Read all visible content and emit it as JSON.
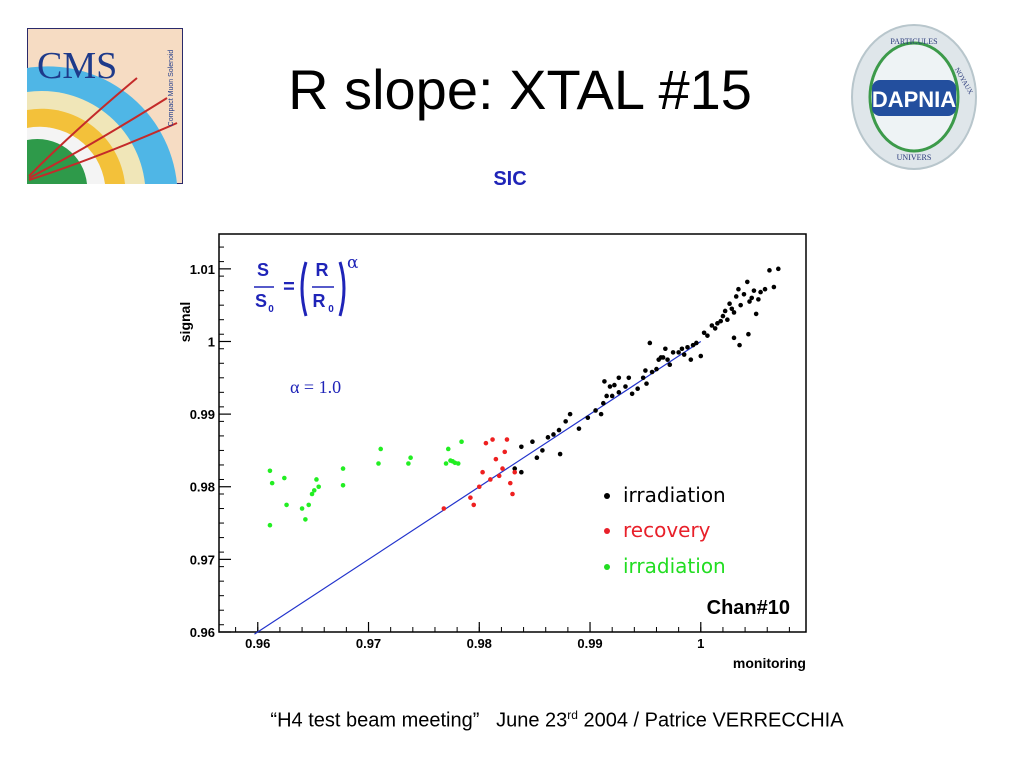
{
  "title": "R slope: XTAL #15",
  "subtitle": "SIC",
  "logos": {
    "left": {
      "icon": "cms-logo",
      "text": "CMS",
      "small_text": "Compact Muon Solenoid"
    },
    "right": {
      "icon": "dapnia-logo",
      "text": "DAPNIA",
      "ring_top": "PARTICULES",
      "ring_right": "NOYAUX",
      "ring_bottom": "UNIVERS"
    }
  },
  "footer": {
    "meeting": "“H4 test beam meeting”",
    "date_pre": "June 23",
    "date_sup": "rd",
    "date_post": " 2004 / Patrice VERRECCHIA"
  },
  "chart_data": {
    "type": "scatter",
    "xlabel": "monitoring",
    "ylabel": "signal",
    "xlim": [
      0.9565,
      1.0095
    ],
    "ylim": [
      0.96,
      1.0148
    ],
    "x_ticks": [
      0.96,
      0.97,
      0.98,
      0.99,
      1.0
    ],
    "x_tick_labels": [
      "0.96",
      "0.97",
      "0.98",
      "0.99",
      "1"
    ],
    "y_ticks": [
      0.96,
      0.97,
      0.98,
      0.99,
      1.0,
      1.01
    ],
    "y_tick_labels": [
      "0.96",
      "0.97",
      "0.98",
      "0.99",
      "1",
      "1.01"
    ],
    "formula": {
      "lhs_num": "S",
      "lhs_den": "S",
      "lhs_sub": "0",
      "eq": "=",
      "rhs_num": "R",
      "rhs_den": "R",
      "rhs_sub": "0",
      "exponent": "α"
    },
    "alpha_text": "α = 1.0",
    "annotation": "Chan#10",
    "fit_line": {
      "color": "#2233cc",
      "slope": 1.0,
      "x_range": [
        0.9597,
        1.0
      ]
    },
    "series": [
      {
        "name": "irradiation",
        "color": "#000000",
        "legend_color": "#000000",
        "points": [
          [
            0.9832,
            0.9825
          ],
          [
            0.9838,
            0.982
          ],
          [
            0.9838,
            0.9855
          ],
          [
            0.9848,
            0.9862
          ],
          [
            0.9852,
            0.984
          ],
          [
            0.9857,
            0.985
          ],
          [
            0.9862,
            0.9868
          ],
          [
            0.9867,
            0.9872
          ],
          [
            0.9872,
            0.9878
          ],
          [
            0.9873,
            0.9845
          ],
          [
            0.9878,
            0.989
          ],
          [
            0.9882,
            0.99
          ],
          [
            0.989,
            0.988
          ],
          [
            0.9898,
            0.9895
          ],
          [
            0.9905,
            0.9905
          ],
          [
            0.991,
            0.99
          ],
          [
            0.9912,
            0.9915
          ],
          [
            0.9913,
            0.9945
          ],
          [
            0.9915,
            0.9925
          ],
          [
            0.9918,
            0.9938
          ],
          [
            0.992,
            0.9925
          ],
          [
            0.9922,
            0.994
          ],
          [
            0.9926,
            0.995
          ],
          [
            0.9926,
            0.993
          ],
          [
            0.9932,
            0.9938
          ],
          [
            0.9935,
            0.995
          ],
          [
            0.9938,
            0.9928
          ],
          [
            0.9943,
            0.9935
          ],
          [
            0.9948,
            0.995
          ],
          [
            0.995,
            0.996
          ],
          [
            0.9951,
            0.9942
          ],
          [
            0.9956,
            0.9958
          ],
          [
            0.996,
            0.9962
          ],
          [
            0.9962,
            0.9975
          ],
          [
            0.9966,
            0.9978
          ],
          [
            0.997,
            0.9975
          ],
          [
            0.9972,
            0.9968
          ],
          [
            0.9975,
            0.9985
          ],
          [
            0.998,
            0.9985
          ],
          [
            0.9983,
            0.999
          ],
          [
            0.9985,
            0.9982
          ],
          [
            0.9988,
            0.9992
          ],
          [
            0.9991,
            0.9975
          ],
          [
            0.9993,
            0.9995
          ],
          [
            0.9996,
            0.9998
          ],
          [
            1.0,
            0.998
          ],
          [
            1.0003,
            1.0012
          ],
          [
            1.0006,
            1.0008
          ],
          [
            1.001,
            1.0022
          ],
          [
            1.0013,
            1.0018
          ],
          [
            1.0015,
            1.0025
          ],
          [
            1.0018,
            1.0028
          ],
          [
            1.002,
            1.0035
          ],
          [
            1.0022,
            1.0042
          ],
          [
            1.0024,
            1.003
          ],
          [
            1.0026,
            1.0052
          ],
          [
            1.0028,
            1.0045
          ],
          [
            1.003,
            1.004
          ],
          [
            1.0032,
            1.0062
          ],
          [
            1.0034,
            1.0072
          ],
          [
            1.0036,
            1.005
          ],
          [
            1.0039,
            1.0065
          ],
          [
            1.0042,
            1.0082
          ],
          [
            1.0044,
            1.0055
          ],
          [
            1.0046,
            1.006
          ],
          [
            1.0048,
            1.007
          ],
          [
            1.005,
            1.0038
          ],
          [
            1.0052,
            1.0058
          ],
          [
            1.0054,
            1.0068
          ],
          [
            1.0058,
            1.0072
          ],
          [
            1.0062,
            1.0098
          ],
          [
            1.0066,
            1.0075
          ],
          [
            1.007,
            1.01
          ],
          [
            1.0035,
            0.9995
          ],
          [
            1.003,
            1.0005
          ],
          [
            1.0043,
            1.001
          ],
          [
            0.9968,
            0.999
          ],
          [
            0.9954,
            0.9998
          ],
          [
            0.9964,
            0.9978
          ]
        ]
      },
      {
        "name": "recovery",
        "color": "#ee2020",
        "legend_color": "#e8202a",
        "points": [
          [
            0.9768,
            0.977
          ],
          [
            0.9792,
            0.9785
          ],
          [
            0.9795,
            0.9775
          ],
          [
            0.98,
            0.98
          ],
          [
            0.9803,
            0.982
          ],
          [
            0.9806,
            0.986
          ],
          [
            0.981,
            0.981
          ],
          [
            0.9812,
            0.9865
          ],
          [
            0.9815,
            0.9838
          ],
          [
            0.9818,
            0.9815
          ],
          [
            0.9821,
            0.9825
          ],
          [
            0.9823,
            0.9848
          ],
          [
            0.9825,
            0.9865
          ],
          [
            0.9828,
            0.9805
          ],
          [
            0.983,
            0.979
          ],
          [
            0.9832,
            0.982
          ]
        ]
      },
      {
        "name": "irradiation",
        "color": "#22ee22",
        "legend_color": "#22dd22",
        "points": [
          [
            0.9611,
            0.9747
          ],
          [
            0.9611,
            0.9822
          ],
          [
            0.9613,
            0.9805
          ],
          [
            0.9624,
            0.9812
          ],
          [
            0.9626,
            0.9775
          ],
          [
            0.964,
            0.977
          ],
          [
            0.9643,
            0.9755
          ],
          [
            0.9646,
            0.9775
          ],
          [
            0.9649,
            0.979
          ],
          [
            0.9651,
            0.9795
          ],
          [
            0.9653,
            0.981
          ],
          [
            0.9655,
            0.98
          ],
          [
            0.9677,
            0.9825
          ],
          [
            0.9677,
            0.9802
          ],
          [
            0.9709,
            0.9832
          ],
          [
            0.9711,
            0.9852
          ],
          [
            0.9736,
            0.9832
          ],
          [
            0.9738,
            0.984
          ],
          [
            0.977,
            0.9832
          ],
          [
            0.9772,
            0.9852
          ],
          [
            0.9774,
            0.9836
          ],
          [
            0.9776,
            0.9835
          ],
          [
            0.9778,
            0.9833
          ],
          [
            0.9781,
            0.9832
          ],
          [
            0.9784,
            0.9862
          ]
        ]
      }
    ]
  }
}
